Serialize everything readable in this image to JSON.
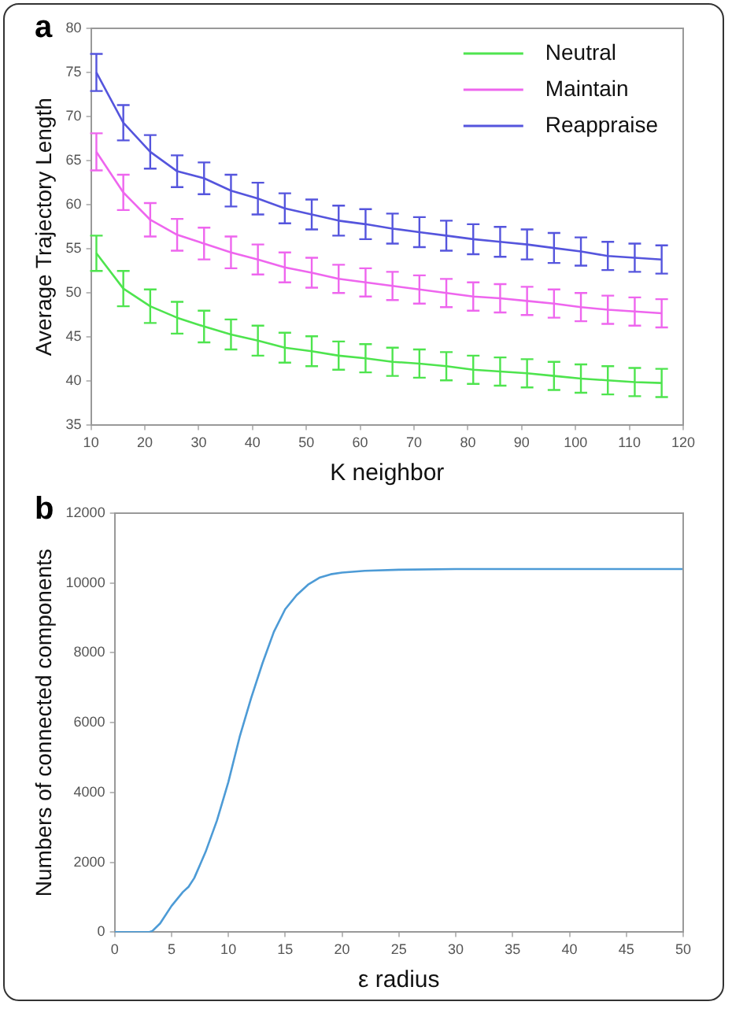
{
  "chart_data": [
    {
      "type": "line",
      "xlabel": "K neighbor",
      "ylabel": "Average Trajectory Length",
      "annotations": [
        "a"
      ],
      "xlim": [
        10,
        120
      ],
      "xticks": [
        10,
        20,
        30,
        40,
        50,
        60,
        70,
        80,
        90,
        100,
        110,
        120
      ],
      "ylim": [
        35,
        80
      ],
      "yticks": [
        35,
        40,
        45,
        50,
        55,
        60,
        65,
        70,
        75,
        80
      ],
      "grid": false,
      "legend": "top right",
      "marker": "none",
      "line_style": "solid",
      "x": [
        11,
        16,
        21,
        26,
        31,
        36,
        41,
        46,
        51,
        56,
        61,
        66,
        71,
        76,
        81,
        86,
        91,
        96,
        101,
        106,
        111,
        116
      ],
      "series": [
        {
          "name": "Neutral",
          "color": "#4ee44e",
          "values": [
            54.5,
            50.5,
            48.5,
            47.2,
            46.2,
            45.3,
            44.6,
            43.8,
            43.4,
            42.9,
            42.6,
            42.2,
            42,
            41.7,
            41.3,
            41.1,
            40.9,
            40.6,
            40.3,
            40.1,
            39.9,
            39.8
          ],
          "errors": [
            2,
            2,
            1.9,
            1.8,
            1.8,
            1.7,
            1.7,
            1.7,
            1.7,
            1.6,
            1.6,
            1.6,
            1.6,
            1.6,
            1.6,
            1.6,
            1.6,
            1.6,
            1.6,
            1.6,
            1.6,
            1.6
          ]
        },
        {
          "name": "Maintain",
          "color": "#ee66ee",
          "values": [
            66,
            61.4,
            58.3,
            56.6,
            55.6,
            54.6,
            53.8,
            52.9,
            52.3,
            51.6,
            51.2,
            50.8,
            50.4,
            50,
            49.6,
            49.4,
            49.1,
            48.8,
            48.4,
            48.1,
            47.9,
            47.7
          ],
          "errors": [
            2.1,
            2,
            1.9,
            1.8,
            1.8,
            1.8,
            1.7,
            1.7,
            1.7,
            1.6,
            1.6,
            1.6,
            1.6,
            1.6,
            1.6,
            1.6,
            1.6,
            1.6,
            1.6,
            1.6,
            1.6,
            1.6
          ]
        },
        {
          "name": "Reappraise",
          "color": "#5555dd",
          "values": [
            75,
            69.3,
            66,
            63.8,
            63,
            61.6,
            60.7,
            59.6,
            58.9,
            58.2,
            57.8,
            57.3,
            56.9,
            56.5,
            56.1,
            55.8,
            55.5,
            55.1,
            54.7,
            54.2,
            54,
            53.8
          ],
          "errors": [
            2.1,
            2,
            1.9,
            1.8,
            1.8,
            1.8,
            1.8,
            1.7,
            1.7,
            1.7,
            1.7,
            1.7,
            1.7,
            1.7,
            1.7,
            1.7,
            1.7,
            1.7,
            1.6,
            1.6,
            1.6,
            1.6
          ]
        }
      ]
    },
    {
      "type": "line",
      "xlabel": "ε radius",
      "ylabel": "Numbers of connected components",
      "annotations": [
        "b"
      ],
      "xlim": [
        0,
        50
      ],
      "xticks": [
        0,
        5,
        10,
        15,
        20,
        25,
        30,
        35,
        40,
        45,
        50
      ],
      "ylim": [
        0,
        12000
      ],
      "yticks": [
        0,
        2000,
        4000,
        6000,
        8000,
        10000,
        12000
      ],
      "grid": false,
      "legend": false,
      "marker": "none",
      "line_style": "solid",
      "x": [
        0,
        3,
        3.3,
        4,
        5,
        6,
        6.5,
        7,
        8,
        9,
        10,
        11,
        12,
        13,
        14,
        15,
        16,
        17,
        18,
        19,
        20,
        22,
        25,
        30,
        40,
        50
      ],
      "series": [
        {
          "color": "#4d9bd6",
          "values": [
            0,
            0,
            30,
            250,
            750,
            1150,
            1300,
            1550,
            2300,
            3200,
            4300,
            5600,
            6700,
            7700,
            8600,
            9250,
            9650,
            9950,
            10150,
            10250,
            10300,
            10350,
            10380,
            10400,
            10400,
            10400
          ]
        }
      ]
    }
  ]
}
